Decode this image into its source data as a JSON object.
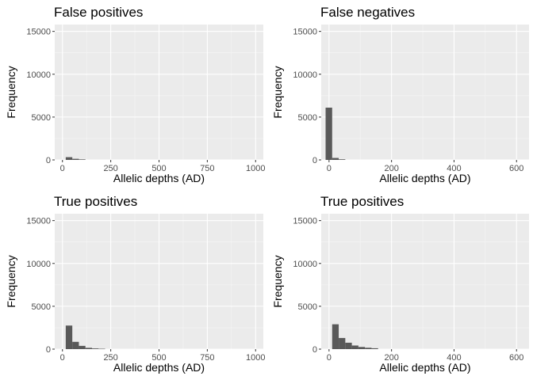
{
  "colors": {
    "panel_bg": "#ebebeb",
    "grid_major": "#ffffff",
    "grid_minor": "#f5f5f5",
    "bar_fill": "#595959",
    "tick": "#333333"
  },
  "chart_data": [
    {
      "type": "bar",
      "title": "False positives",
      "xlabel": "Allelic depths (AD)",
      "ylabel": "Frequency",
      "xlim": [
        -40,
        1040
      ],
      "ylim": [
        0,
        15800
      ],
      "xticks": [
        0,
        250,
        500,
        750,
        1000
      ],
      "xtick_labels": [
        "0",
        "250",
        "500",
        "750",
        "1000"
      ],
      "yticks": [
        0,
        5000,
        10000,
        15000
      ],
      "ytick_labels": [
        "0",
        "5000",
        "10000",
        "15000"
      ],
      "grid": true,
      "bin_width": 34,
      "bins": [
        {
          "x0": 17,
          "x1": 51,
          "count": 320
        },
        {
          "x0": 51,
          "x1": 85,
          "count": 130
        },
        {
          "x0": 85,
          "x1": 119,
          "count": 60
        }
      ]
    },
    {
      "type": "bar",
      "title": "False negatives",
      "xlabel": "Allelic depths (AD)",
      "ylabel": "Frequency",
      "xlim": [
        -25,
        640
      ],
      "ylim": [
        0,
        15800
      ],
      "xticks": [
        0,
        200,
        400,
        600
      ],
      "xtick_labels": [
        "0",
        "200",
        "400",
        "600"
      ],
      "yticks": [
        0,
        5000,
        10000,
        15000
      ],
      "ytick_labels": [
        "0",
        "5000",
        "10000",
        "15000"
      ],
      "grid": true,
      "bin_width": 21,
      "bins": [
        {
          "x0": -11,
          "x1": 10,
          "count": 6100
        },
        {
          "x0": 10,
          "x1": 31,
          "count": 230
        },
        {
          "x0": 31,
          "x1": 52,
          "count": 70
        }
      ]
    },
    {
      "type": "bar",
      "title": "True positives",
      "xlabel": "Allelic depths (AD)",
      "ylabel": "Frequency",
      "xlim": [
        -40,
        1040
      ],
      "ylim": [
        0,
        15800
      ],
      "xticks": [
        0,
        250,
        500,
        750,
        1000
      ],
      "xtick_labels": [
        "0",
        "250",
        "500",
        "750",
        "1000"
      ],
      "yticks": [
        0,
        5000,
        10000,
        15000
      ],
      "ytick_labels": [
        "0",
        "5000",
        "10000",
        "15000"
      ],
      "grid": true,
      "bin_width": 34,
      "bins": [
        {
          "x0": 17,
          "x1": 51,
          "count": 2750
        },
        {
          "x0": 51,
          "x1": 85,
          "count": 850
        },
        {
          "x0": 85,
          "x1": 119,
          "count": 380
        },
        {
          "x0": 119,
          "x1": 153,
          "count": 150
        },
        {
          "x0": 153,
          "x1": 187,
          "count": 80
        },
        {
          "x0": 187,
          "x1": 221,
          "count": 40
        }
      ]
    },
    {
      "type": "bar",
      "title": "True positives",
      "xlabel": "Allelic depths (AD)",
      "ylabel": "Frequency",
      "xlim": [
        -25,
        640
      ],
      "ylim": [
        0,
        15800
      ],
      "xticks": [
        0,
        200,
        400,
        600
      ],
      "xtick_labels": [
        "0",
        "200",
        "400",
        "600"
      ],
      "yticks": [
        0,
        5000,
        10000,
        15000
      ],
      "ytick_labels": [
        "0",
        "5000",
        "10000",
        "15000"
      ],
      "grid": true,
      "bin_width": 21,
      "bins": [
        {
          "x0": 10,
          "x1": 31,
          "count": 2900
        },
        {
          "x0": 31,
          "x1": 52,
          "count": 1300
        },
        {
          "x0": 52,
          "x1": 73,
          "count": 750
        },
        {
          "x0": 73,
          "x1": 94,
          "count": 420
        },
        {
          "x0": 94,
          "x1": 115,
          "count": 250
        },
        {
          "x0": 115,
          "x1": 136,
          "count": 160
        },
        {
          "x0": 136,
          "x1": 157,
          "count": 100
        }
      ]
    }
  ]
}
